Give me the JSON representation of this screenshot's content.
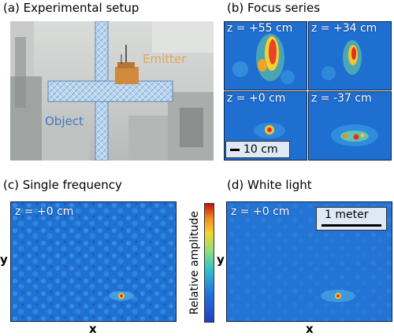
{
  "panels": {
    "a": {
      "title": "(a) Experimental setup",
      "object_label": "Object",
      "emitter_label": "Emitter"
    },
    "b": {
      "title": "(b) Focus series",
      "tiles": [
        {
          "z": "z = +55 cm"
        },
        {
          "z": "z = +34 cm"
        },
        {
          "z": "z = +0 cm"
        },
        {
          "z": "z = -37 cm"
        }
      ],
      "scalebar": "10 cm"
    },
    "c": {
      "title": "(c) Single frequency",
      "z": "z = +0 cm",
      "xlabel": "x",
      "ylabel": "y"
    },
    "colorbar": {
      "label": "Relative amplitude"
    },
    "d": {
      "title": "(d) White light",
      "z": "z = +0 cm",
      "xlabel": "x",
      "ylabel": "y",
      "scalebar": "1 meter"
    }
  },
  "colors": {
    "field_bg": "#1f6fd0",
    "speckle": "#3a9be0",
    "hot": "#e8361a",
    "object_label": "#3d79c0",
    "emitter_label": "#e8a25a"
  }
}
